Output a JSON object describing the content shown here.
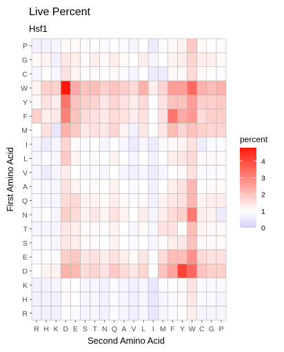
{
  "chart_data": {
    "type": "heatmap",
    "title": "Live Percent",
    "subtitle": "Hsf1",
    "xlabel": "Second Amino Acid",
    "ylabel": "First Amino Acid",
    "x_categories": [
      "R",
      "H",
      "K",
      "D",
      "E",
      "S",
      "T",
      "N",
      "Q",
      "A",
      "V",
      "L",
      "I",
      "M",
      "F",
      "Y",
      "W",
      "C",
      "G",
      "P"
    ],
    "y_categories": [
      "P",
      "G",
      "C",
      "W",
      "Y",
      "F",
      "M",
      "I",
      "L",
      "V",
      "A",
      "Q",
      "N",
      "T",
      "S",
      "E",
      "D",
      "K",
      "H",
      "R"
    ],
    "legend": {
      "title": "percent",
      "ticks": [
        0,
        1,
        2,
        3,
        4
      ],
      "range": [
        0,
        4.8
      ],
      "colors": {
        "low": "#d6ccff",
        "mid": "#ffffff",
        "high": "#ff1a0a"
      },
      "midpoint": 1
    },
    "values": [
      [
        0.7,
        0.7,
        0.8,
        1.1,
        1.1,
        0.9,
        1.0,
        0.9,
        1.0,
        0.9,
        0.8,
        1.0,
        0.6,
        0.9,
        1.1,
        1.2,
        1.9,
        1.1,
        1.0,
        0.9
      ],
      [
        1.1,
        1.2,
        0.7,
        1.4,
        1.3,
        1.1,
        1.3,
        1.1,
        1.3,
        1.1,
        1.0,
        1.3,
        0.8,
        1.0,
        1.2,
        1.3,
        1.7,
        1.3,
        1.3,
        1.1
      ],
      [
        0.8,
        1.0,
        0.8,
        1.5,
        1.2,
        0.9,
        1.1,
        1.0,
        1.1,
        0.9,
        0.8,
        1.0,
        0.6,
        0.6,
        1.1,
        1.1,
        1.6,
        1.1,
        1.0,
        0.9
      ],
      [
        1.2,
        1.8,
        1.8,
        4.8,
        2.4,
        2.0,
        2.1,
        1.8,
        2.0,
        1.8,
        1.6,
        2.3,
        1.3,
        1.7,
        2.6,
        2.6,
        3.5,
        2.3,
        2.1,
        2.3
      ],
      [
        1.1,
        1.5,
        1.3,
        3.3,
        2.0,
        1.8,
        1.7,
        1.4,
        1.7,
        1.5,
        1.3,
        1.6,
        1.0,
        1.5,
        2.0,
        2.0,
        2.6,
        1.8,
        1.8,
        1.9
      ],
      [
        1.8,
        1.3,
        1.4,
        3.1,
        2.0,
        1.6,
        1.5,
        1.4,
        1.6,
        1.5,
        1.3,
        1.5,
        1.0,
        1.5,
        3.3,
        2.4,
        2.7,
        1.6,
        1.8,
        1.8
      ],
      [
        1.0,
        1.5,
        0.5,
        2.3,
        1.9,
        1.4,
        1.5,
        1.4,
        1.7,
        1.2,
        0.7,
        1.4,
        1.0,
        1.4,
        2.1,
        1.7,
        2.0,
        1.8,
        1.7,
        1.7
      ],
      [
        0.8,
        0.6,
        0.8,
        1.7,
        1.1,
        0.9,
        1.0,
        0.8,
        1.0,
        0.8,
        0.6,
        0.8,
        0.6,
        0.9,
        1.1,
        1.2,
        1.5,
        0.6,
        0.9,
        0.9
      ],
      [
        0.8,
        0.9,
        0.8,
        1.9,
        1.2,
        1.0,
        1.1,
        1.0,
        1.2,
        1.0,
        0.8,
        1.0,
        0.7,
        1.0,
        1.3,
        1.4,
        1.6,
        1.1,
        1.1,
        1.1
      ],
      [
        0.8,
        0.6,
        0.8,
        1.3,
        1.0,
        0.9,
        0.9,
        0.8,
        1.0,
        0.8,
        0.7,
        0.8,
        0.6,
        0.8,
        1.0,
        1.1,
        1.5,
        0.9,
        0.9,
        0.9
      ],
      [
        0.9,
        0.8,
        0.8,
        1.5,
        1.2,
        1.0,
        1.1,
        1.0,
        1.2,
        1.0,
        0.9,
        1.0,
        0.7,
        1.0,
        1.3,
        1.5,
        2.2,
        1.0,
        1.1,
        1.1
      ],
      [
        0.9,
        0.8,
        0.8,
        1.6,
        1.6,
        1.2,
        1.2,
        1.1,
        1.3,
        1.1,
        0.9,
        1.1,
        0.7,
        1.2,
        1.4,
        1.5,
        2.2,
        1.2,
        1.3,
        1.3
      ],
      [
        0.9,
        1.0,
        0.8,
        1.8,
        1.6,
        1.2,
        1.4,
        1.2,
        1.5,
        1.2,
        1.0,
        1.3,
        0.8,
        1.3,
        1.6,
        1.8,
        3.2,
        1.3,
        1.2,
        0.6
      ],
      [
        0.8,
        0.8,
        0.8,
        1.4,
        1.3,
        1.1,
        1.1,
        0.9,
        1.2,
        1.0,
        0.8,
        1.1,
        0.8,
        1.5,
        1.5,
        1.0,
        2.1,
        1.2,
        1.1,
        1.1
      ],
      [
        0.9,
        0.9,
        0.8,
        1.4,
        1.3,
        1.1,
        1.1,
        1.0,
        1.2,
        1.0,
        0.9,
        1.0,
        0.8,
        1.1,
        1.3,
        1.4,
        2.0,
        1.1,
        1.1,
        1.1
      ],
      [
        0.9,
        1.0,
        0.9,
        1.8,
        1.9,
        1.4,
        1.5,
        1.3,
        1.5,
        1.3,
        1.1,
        1.4,
        0.9,
        1.6,
        2.1,
        2.1,
        2.8,
        1.6,
        1.5,
        1.5
      ],
      [
        1.0,
        1.2,
        1.2,
        2.3,
        2.2,
        1.6,
        1.7,
        1.5,
        1.9,
        1.6,
        1.4,
        1.7,
        1.0,
        2.0,
        2.5,
        4.1,
        3.5,
        2.0,
        1.8,
        1.8
      ],
      [
        0.7,
        0.7,
        0.8,
        1.1,
        1.0,
        0.8,
        0.8,
        0.7,
        0.9,
        0.8,
        0.7,
        0.8,
        0.5,
        0.9,
        1.0,
        1.1,
        1.5,
        0.9,
        0.9,
        0.9
      ],
      [
        0.7,
        0.7,
        0.7,
        1.1,
        1.0,
        0.8,
        0.8,
        0.7,
        0.9,
        0.8,
        0.7,
        0.8,
        0.5,
        0.8,
        0.9,
        1.1,
        1.4,
        0.9,
        0.9,
        0.8
      ],
      [
        0.7,
        0.7,
        0.7,
        1.0,
        0.9,
        0.8,
        0.8,
        0.7,
        0.9,
        0.8,
        0.7,
        0.8,
        0.5,
        0.8,
        0.9,
        1.0,
        1.3,
        0.8,
        0.8,
        0.8
      ]
    ]
  }
}
